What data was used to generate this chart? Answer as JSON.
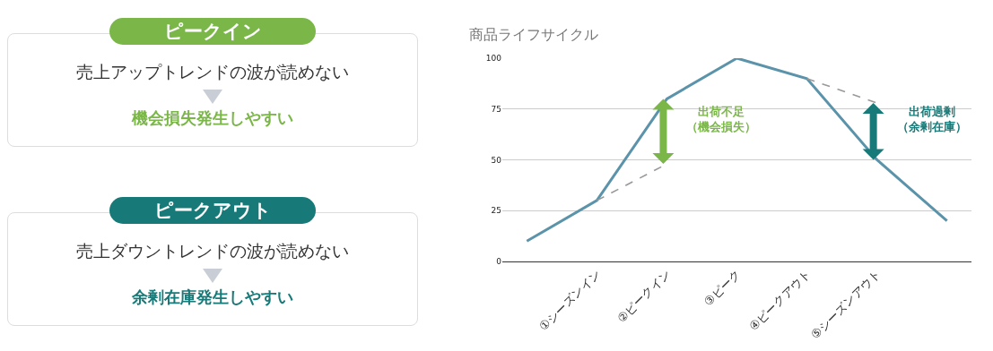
{
  "chart_data": [
    {
      "type": "other",
      "annotations": [
        "ピークイン",
        "売上アップトレンドの波が読めない",
        "機会損失発生しやすい",
        "ピークアウト",
        "売上ダウントレンドの波が読めない",
        "余剰在庫発生しやすい"
      ]
    },
    {
      "type": "line",
      "title": "商品ライフサイクル",
      "categories": [
        null,
        "①シーズンイン",
        "②ピークイン",
        "③ピーク",
        "④ピークアウト",
        "⑤シーズンアウト",
        null
      ],
      "series": [
        {
          "color": "#5b93aa",
          "values": [
            10,
            30,
            80,
            100,
            90,
            50,
            20
          ]
        },
        {
          "color": "#999999",
          "line_style": "dashed",
          "values": [
            null,
            30,
            48,
            null,
            90,
            78,
            null
          ]
        }
      ],
      "ylim": [
        0,
        100
      ],
      "yticks": [
        0,
        25,
        50,
        75,
        100
      ],
      "grid": "y",
      "marker": "none",
      "line_style": "solid",
      "annotations": [
        "出荷不足（機会損失）",
        "出荷過剰（余剰在庫）"
      ]
    }
  ]
}
